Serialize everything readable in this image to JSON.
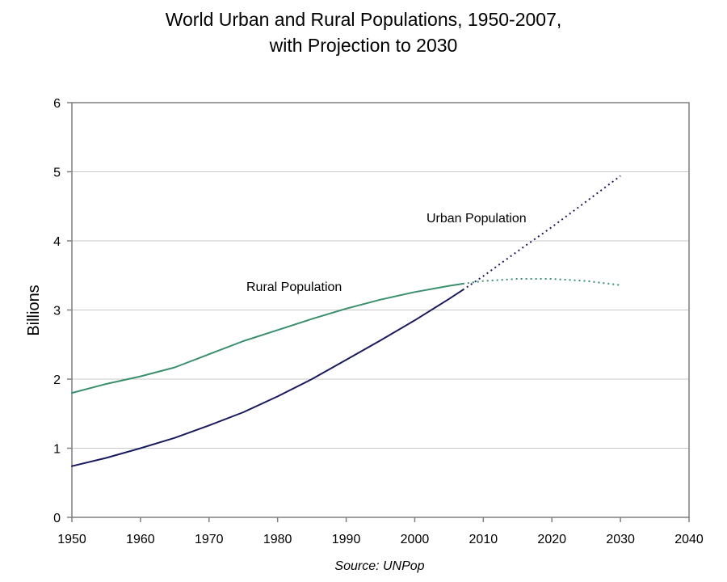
{
  "chart_data": {
    "type": "line",
    "title_lines": [
      "World Urban and Rural Populations, 1950-2007,",
      "with Projection to 2030"
    ],
    "xlabel": "",
    "ylabel": "Billions",
    "xlim": [
      1950,
      2040
    ],
    "ylim": [
      0,
      6
    ],
    "x_ticks": [
      "1950",
      "1960",
      "1970",
      "1980",
      "1990",
      "2000",
      "2010",
      "2020",
      "2030",
      "2040"
    ],
    "y_ticks": [
      "0",
      "1",
      "2",
      "3",
      "4",
      "5",
      "6"
    ],
    "grid": "horizontal",
    "legend": "none",
    "series": [
      {
        "name": "Urban Population",
        "color": "#1a1a5e",
        "observed": {
          "x": [
            1950,
            1955,
            1960,
            1965,
            1970,
            1975,
            1980,
            1985,
            1990,
            1995,
            2000,
            2005,
            2007
          ],
          "y": [
            0.74,
            0.86,
            1.0,
            1.15,
            1.33,
            1.52,
            1.75,
            2.0,
            2.28,
            2.56,
            2.85,
            3.16,
            3.29
          ]
        },
        "projected": {
          "x": [
            2007,
            2010,
            2015,
            2020,
            2025,
            2030
          ],
          "y": [
            3.29,
            3.49,
            3.85,
            4.2,
            4.57,
            4.94
          ]
        }
      },
      {
        "name": "Rural Population",
        "color": "#3a8f6c",
        "observed": {
          "x": [
            1950,
            1955,
            1960,
            1965,
            1970,
            1975,
            1980,
            1985,
            1990,
            1995,
            2000,
            2005,
            2007
          ],
          "y": [
            1.8,
            1.93,
            2.04,
            2.17,
            2.36,
            2.55,
            2.71,
            2.87,
            3.02,
            3.15,
            3.26,
            3.35,
            3.38
          ]
        },
        "projected": {
          "x": [
            2007,
            2010,
            2015,
            2020,
            2025,
            2030
          ],
          "y": [
            3.38,
            3.42,
            3.45,
            3.45,
            3.42,
            3.36
          ]
        }
      }
    ],
    "annotations": {
      "urban_label": "Urban Population",
      "rural_label": "Rural Population"
    },
    "source": "Source: UNPop"
  }
}
